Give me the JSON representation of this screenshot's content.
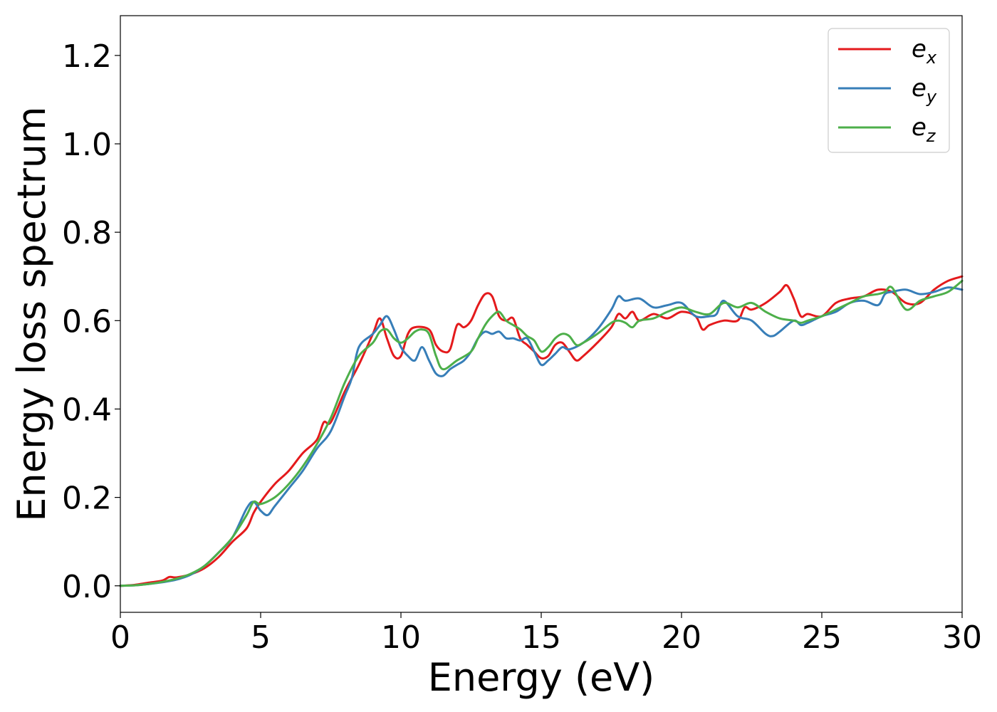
{
  "chart_data": {
    "type": "line",
    "title": "",
    "xlabel": "Energy (eV)",
    "ylabel": "Energy loss spectrum",
    "xlim": [
      0,
      30
    ],
    "ylim": [
      -0.06,
      1.29
    ],
    "xticks": [
      0,
      5,
      10,
      15,
      20,
      25,
      30
    ],
    "xtick_labels": [
      "0",
      "5",
      "10",
      "15",
      "20",
      "25",
      "30"
    ],
    "yticks": [
      0.0,
      0.2,
      0.4,
      0.6,
      0.8,
      1.0,
      1.2
    ],
    "ytick_labels": [
      "0.0",
      "0.2",
      "0.4",
      "0.6",
      "0.8",
      "1.0",
      "1.2"
    ],
    "grid": false,
    "legend_position": "top-right",
    "series": [
      {
        "name": "e_x",
        "legend_base": "e",
        "legend_sub": "x",
        "color": "#e41a1c",
        "x": [
          0,
          0.5,
          1,
          1.5,
          1.75,
          2,
          2.5,
          3,
          3.5,
          4,
          4.5,
          4.75,
          5,
          5.5,
          6,
          6.5,
          7,
          7.25,
          7.5,
          8,
          8.5,
          9,
          9.25,
          9.5,
          9.75,
          10,
          10.25,
          10.5,
          11,
          11.25,
          11.5,
          11.75,
          12,
          12.25,
          12.5,
          12.75,
          13,
          13.25,
          13.5,
          13.75,
          14,
          14.25,
          14.5,
          14.75,
          15,
          15.25,
          15.5,
          15.75,
          16,
          16.25,
          16.5,
          17,
          17.5,
          17.75,
          18,
          18.25,
          18.5,
          19,
          19.5,
          20,
          20.5,
          20.75,
          21,
          21.5,
          22,
          22.25,
          22.5,
          23,
          23.5,
          23.75,
          24,
          24.25,
          24.5,
          25,
          25.5,
          26,
          26.5,
          27,
          27.5,
          28,
          28.5,
          29,
          29.5,
          30
        ],
        "y": [
          0,
          0.002,
          0.007,
          0.012,
          0.02,
          0.019,
          0.026,
          0.04,
          0.065,
          0.1,
          0.13,
          0.165,
          0.19,
          0.23,
          0.26,
          0.3,
          0.33,
          0.37,
          0.37,
          0.44,
          0.5,
          0.57,
          0.605,
          0.56,
          0.52,
          0.52,
          0.57,
          0.585,
          0.58,
          0.545,
          0.53,
          0.535,
          0.59,
          0.585,
          0.6,
          0.635,
          0.66,
          0.655,
          0.61,
          0.6,
          0.605,
          0.56,
          0.545,
          0.53,
          0.515,
          0.52,
          0.545,
          0.55,
          0.53,
          0.51,
          0.52,
          0.55,
          0.585,
          0.615,
          0.605,
          0.62,
          0.6,
          0.615,
          0.605,
          0.62,
          0.61,
          0.58,
          0.59,
          0.6,
          0.6,
          0.63,
          0.625,
          0.64,
          0.665,
          0.68,
          0.65,
          0.61,
          0.615,
          0.61,
          0.64,
          0.65,
          0.655,
          0.67,
          0.665,
          0.64,
          0.64,
          0.67,
          0.69,
          0.7
        ]
      },
      {
        "name": "e_y",
        "legend_base": "e",
        "legend_sub": "y",
        "color": "#377eb8",
        "x": [
          0,
          0.5,
          1,
          1.5,
          2,
          2.5,
          3,
          3.5,
          4,
          4.5,
          4.75,
          5,
          5.25,
          5.5,
          6,
          6.5,
          7,
          7.5,
          8,
          8.25,
          8.5,
          9,
          9.25,
          9.5,
          9.75,
          10,
          10.25,
          10.5,
          10.75,
          11,
          11.25,
          11.5,
          11.75,
          12,
          12.25,
          12.5,
          12.75,
          13,
          13.25,
          13.5,
          13.75,
          14,
          14.25,
          14.5,
          14.75,
          15,
          15.25,
          15.5,
          15.75,
          16,
          16.5,
          17,
          17.5,
          17.75,
          18,
          18.5,
          19,
          19.5,
          20,
          20.5,
          21,
          21.25,
          21.5,
          22,
          22.5,
          23,
          23.25,
          23.5,
          24,
          24.25,
          24.5,
          25,
          25.5,
          26,
          26.5,
          27,
          27.25,
          27.5,
          28,
          28.5,
          29,
          29.5,
          30
        ],
        "y": [
          0,
          0.001,
          0.004,
          0.008,
          0.014,
          0.025,
          0.045,
          0.075,
          0.11,
          0.175,
          0.19,
          0.17,
          0.16,
          0.18,
          0.22,
          0.26,
          0.31,
          0.35,
          0.43,
          0.47,
          0.54,
          0.57,
          0.59,
          0.61,
          0.58,
          0.54,
          0.52,
          0.51,
          0.54,
          0.51,
          0.48,
          0.475,
          0.49,
          0.5,
          0.51,
          0.53,
          0.56,
          0.575,
          0.57,
          0.575,
          0.56,
          0.56,
          0.555,
          0.56,
          0.53,
          0.5,
          0.51,
          0.525,
          0.54,
          0.535,
          0.55,
          0.58,
          0.625,
          0.655,
          0.645,
          0.65,
          0.63,
          0.635,
          0.64,
          0.61,
          0.61,
          0.615,
          0.645,
          0.61,
          0.6,
          0.57,
          0.565,
          0.575,
          0.6,
          0.59,
          0.595,
          0.61,
          0.62,
          0.64,
          0.645,
          0.635,
          0.66,
          0.665,
          0.67,
          0.66,
          0.665,
          0.675,
          0.67
        ]
      },
      {
        "name": "e_z",
        "legend_base": "e",
        "legend_sub": "z",
        "color": "#4daf4a",
        "x": [
          0,
          0.5,
          1,
          1.5,
          2,
          2.5,
          3,
          3.5,
          4,
          4.5,
          4.75,
          5,
          5.5,
          6,
          6.5,
          7,
          7.5,
          8,
          8.5,
          9,
          9.25,
          9.5,
          9.75,
          10,
          10.25,
          10.5,
          10.75,
          11,
          11.25,
          11.5,
          12,
          12.5,
          12.75,
          13,
          13.25,
          13.5,
          13.75,
          14,
          14.25,
          14.5,
          14.75,
          15,
          15.25,
          15.5,
          15.75,
          16,
          16.25,
          16.5,
          17,
          17.5,
          17.75,
          18,
          18.25,
          18.5,
          19,
          19.5,
          20,
          20.5,
          21,
          21.5,
          22,
          22.5,
          23,
          23.5,
          24,
          24.25,
          24.5,
          25,
          25.5,
          26,
          26.5,
          27,
          27.25,
          27.5,
          28,
          28.5,
          29,
          29.5,
          30
        ],
        "y": [
          0,
          0.001,
          0.004,
          0.009,
          0.016,
          0.027,
          0.045,
          0.075,
          0.11,
          0.16,
          0.19,
          0.185,
          0.2,
          0.23,
          0.27,
          0.32,
          0.38,
          0.46,
          0.52,
          0.55,
          0.575,
          0.58,
          0.56,
          0.55,
          0.56,
          0.575,
          0.58,
          0.57,
          0.52,
          0.49,
          0.51,
          0.53,
          0.56,
          0.59,
          0.61,
          0.62,
          0.6,
          0.59,
          0.58,
          0.565,
          0.555,
          0.53,
          0.54,
          0.56,
          0.57,
          0.565,
          0.545,
          0.55,
          0.57,
          0.595,
          0.6,
          0.595,
          0.585,
          0.6,
          0.605,
          0.62,
          0.63,
          0.62,
          0.615,
          0.64,
          0.63,
          0.64,
          0.62,
          0.605,
          0.6,
          0.595,
          0.6,
          0.61,
          0.625,
          0.64,
          0.655,
          0.66,
          0.665,
          0.675,
          0.625,
          0.645,
          0.655,
          0.665,
          0.69
        ]
      }
    ]
  }
}
